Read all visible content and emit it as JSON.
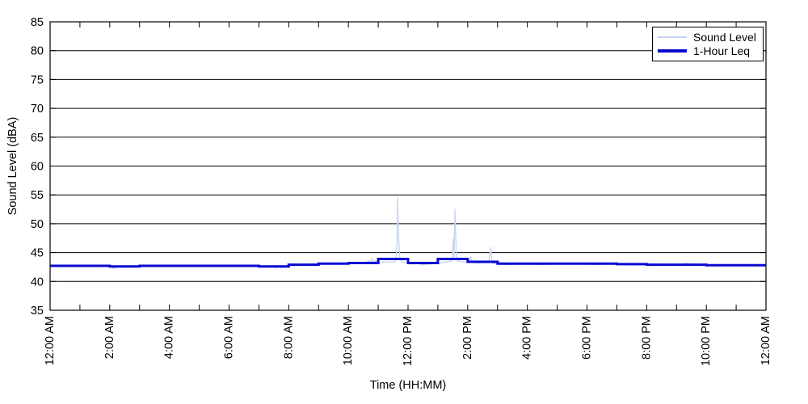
{
  "figure": {
    "xlabel": "Time (HH:MM)",
    "ylabel": "Sound Level (dBA)"
  },
  "chart_data": {
    "type": "line",
    "title": "",
    "xlabel": "Time (HH:MM)",
    "ylabel": "Sound Level (dBA)",
    "x_unit": "hours after 12:00 AM",
    "xlim_hours": [
      0,
      24
    ],
    "ylim": [
      35,
      85
    ],
    "y_ticks": [
      35,
      40,
      45,
      50,
      55,
      60,
      65,
      70,
      75,
      80,
      85
    ],
    "x_tick_hours": [
      0,
      2,
      4,
      6,
      8,
      10,
      12,
      14,
      16,
      18,
      20,
      22,
      24
    ],
    "x_tick_labels": [
      "12:00 AM",
      "2:00 AM",
      "4:00 AM",
      "6:00 AM",
      "8:00 AM",
      "10:00 AM",
      "12:00 PM",
      "2:00 PM",
      "4:00 PM",
      "6:00 PM",
      "8:00 PM",
      "10:00 PM",
      "12:00 AM"
    ],
    "x_minor_tick_every_hours": 1,
    "grid": {
      "horizontal": true,
      "vertical": false,
      "color": "#000000"
    },
    "legend": {
      "position": "top-right"
    },
    "series": [
      {
        "name": "Sound Level",
        "color": "#c5d4f0",
        "line_width": 1.3,
        "points": [
          [
            0,
            42.6
          ],
          [
            0.5,
            42.6
          ],
          [
            1,
            42.6
          ],
          [
            1.5,
            42.6
          ],
          [
            2,
            42.6
          ],
          [
            2.05,
            42.5
          ],
          [
            2.1,
            42.2
          ],
          [
            2.15,
            42.55
          ],
          [
            2.2,
            42.3
          ],
          [
            2.3,
            42.6
          ],
          [
            3,
            42.6
          ],
          [
            3.5,
            42.6
          ],
          [
            4,
            42.6
          ],
          [
            4.5,
            42.6
          ],
          [
            5,
            42.6
          ],
          [
            5.5,
            42.6
          ],
          [
            6,
            42.6
          ],
          [
            6.5,
            42.6
          ],
          [
            7,
            42.6
          ],
          [
            7.4,
            42.55
          ],
          [
            7.6,
            42.4
          ],
          [
            7.7,
            42.75
          ],
          [
            7.75,
            42.3
          ],
          [
            7.85,
            42.7
          ],
          [
            7.95,
            42.45
          ],
          [
            8.05,
            42.85
          ],
          [
            8.15,
            42.7
          ],
          [
            8.3,
            42.85
          ],
          [
            8.5,
            42.9
          ],
          [
            8.75,
            43.0
          ],
          [
            9,
            43.05
          ],
          [
            9.3,
            43.1
          ],
          [
            9.6,
            43.1
          ],
          [
            10,
            43.15
          ],
          [
            10.3,
            43.2
          ],
          [
            10.6,
            43.3
          ],
          [
            10.68,
            43.6
          ],
          [
            10.72,
            43.2
          ],
          [
            10.78,
            44.0
          ],
          [
            10.83,
            43.3
          ],
          [
            10.9,
            43.7
          ],
          [
            10.97,
            43.35
          ],
          [
            11.1,
            43.3
          ],
          [
            11.25,
            43.4
          ],
          [
            11.4,
            43.35
          ],
          [
            11.55,
            43.4
          ],
          [
            11.6,
            43.9
          ],
          [
            11.63,
            46.5
          ],
          [
            11.65,
            54.5
          ],
          [
            11.68,
            47.8
          ],
          [
            11.72,
            44.2
          ],
          [
            11.78,
            43.4
          ],
          [
            11.9,
            43.3
          ],
          [
            12,
            43.2
          ],
          [
            12.15,
            43.0
          ],
          [
            12.3,
            43.1
          ],
          [
            12.5,
            42.9
          ],
          [
            12.7,
            43.0
          ],
          [
            12.9,
            43.1
          ],
          [
            13.05,
            43.2
          ],
          [
            13.2,
            43.3
          ],
          [
            13.35,
            43.4
          ],
          [
            13.48,
            43.6
          ],
          [
            13.52,
            47.5
          ],
          [
            13.54,
            44.0
          ],
          [
            13.57,
            52.5
          ],
          [
            13.62,
            44.3
          ],
          [
            13.68,
            43.5
          ],
          [
            13.8,
            43.4
          ],
          [
            13.95,
            43.35
          ],
          [
            14.05,
            43.3
          ],
          [
            14.1,
            44.4
          ],
          [
            14.15,
            43.3
          ],
          [
            14.3,
            43.2
          ],
          [
            14.5,
            43.25
          ],
          [
            14.7,
            43.2
          ],
          [
            14.77,
            45.9
          ],
          [
            14.82,
            43.15
          ],
          [
            15,
            43.0
          ],
          [
            15.3,
            42.9
          ],
          [
            15.6,
            42.95
          ],
          [
            16,
            43.0
          ],
          [
            16.4,
            42.9
          ],
          [
            16.8,
            43.0
          ],
          [
            17.2,
            43.0
          ],
          [
            17.6,
            43.05
          ],
          [
            18,
            43.0
          ],
          [
            18.3,
            42.9
          ],
          [
            18.7,
            43.0
          ],
          [
            19,
            42.95
          ],
          [
            19.4,
            42.9
          ],
          [
            19.8,
            42.9
          ],
          [
            20.2,
            43.0
          ],
          [
            20.6,
            42.95
          ],
          [
            21,
            42.9
          ],
          [
            21.35,
            43.15
          ],
          [
            21.5,
            42.9
          ],
          [
            22,
            42.8
          ],
          [
            22.5,
            42.8
          ],
          [
            23,
            42.75
          ],
          [
            23.5,
            42.75
          ],
          [
            24,
            42.7
          ]
        ]
      },
      {
        "name": "1-Hour Leq",
        "color": "#0a0ad2",
        "line_width": 3,
        "render": "step-hourly",
        "hourly_values": [
          42.7,
          42.7,
          42.6,
          42.7,
          42.7,
          42.7,
          42.7,
          42.6,
          42.9,
          43.1,
          43.2,
          43.9,
          43.2,
          43.9,
          43.4,
          43.1,
          43.1,
          43.1,
          43.1,
          43.0,
          42.9,
          42.9,
          42.8,
          42.8
        ]
      }
    ]
  }
}
